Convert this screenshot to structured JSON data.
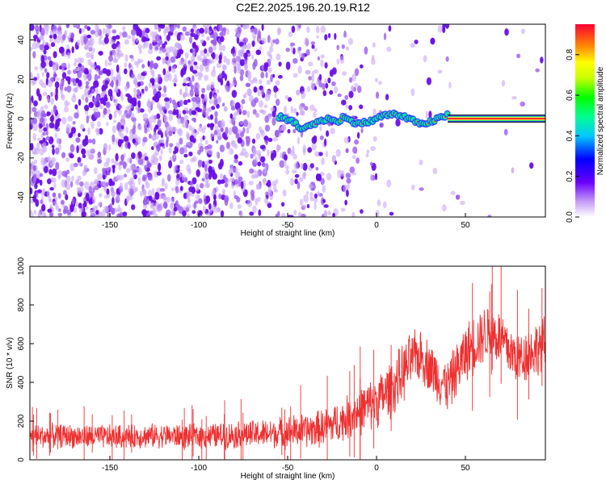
{
  "title": "C2E2.2025.196.20.19.R12",
  "colors": {
    "red_series": "#ee3030",
    "frame": "#000000",
    "spectrogram_purple": "#7a1fe6"
  },
  "chart_data": [
    {
      "type": "heatmap",
      "xlabel": "Height of straight line (km)",
      "ylabel": "Frequency (Hz)",
      "xlim": [
        -195,
        95
      ],
      "ylim": [
        -50,
        48
      ],
      "xticks": [
        -150,
        -100,
        -50,
        0,
        50
      ],
      "yticks": [
        -40,
        -20,
        0,
        20,
        40
      ],
      "colorbar": {
        "label": "Normalized spectral amplitude",
        "range": [
          0.0,
          0.95
        ],
        "ticks": [
          0.0,
          0.2,
          0.4,
          0.6,
          0.8
        ],
        "colormap": "rainbow (purple-blue-cyan-green-yellow-red)"
      },
      "features": {
        "noise_region_x": [
          -195,
          -55
        ],
        "carrier_emerges_x": -55,
        "carrier_freq_hz": 0,
        "steady_carrier_start_x": 40
      }
    },
    {
      "type": "line",
      "xlabel": "Height of straight line (km)",
      "ylabel": "SNR (10 * v/v)",
      "xlim": [
        -195,
        95
      ],
      "ylim": [
        0,
        1000
      ],
      "xticks": [
        -150,
        -100,
        -50,
        0,
        50
      ],
      "yticks": [
        0,
        200,
        400,
        600,
        800,
        1000
      ],
      "series": [
        {
          "color": "#ee3030",
          "x": [
            -195,
            -180,
            -165,
            -150,
            -135,
            -120,
            -105,
            -90,
            -75,
            -60,
            -50,
            -40,
            -30,
            -20,
            -10,
            0,
            10,
            15,
            20,
            25,
            30,
            35,
            40,
            45,
            50,
            55,
            60,
            65,
            70,
            75,
            80,
            85,
            95
          ],
          "values": [
            120,
            125,
            120,
            118,
            122,
            125,
            120,
            125,
            130,
            135,
            145,
            150,
            165,
            200,
            250,
            300,
            380,
            450,
            520,
            540,
            480,
            420,
            380,
            460,
            550,
            600,
            650,
            660,
            620,
            560,
            520,
            550,
            600
          ],
          "spread": [
            70,
            70,
            70,
            70,
            70,
            70,
            70,
            75,
            80,
            85,
            95,
            100,
            110,
            120,
            140,
            150,
            170,
            170,
            160,
            150,
            150,
            150,
            150,
            160,
            170,
            170,
            170,
            170,
            170,
            160,
            160,
            160,
            160
          ]
        }
      ]
    }
  ]
}
